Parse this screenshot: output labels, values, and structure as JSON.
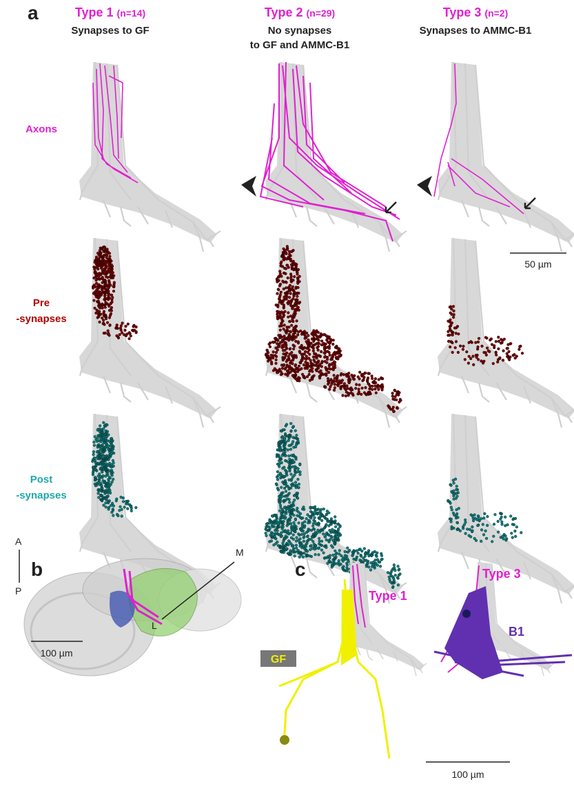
{
  "panel_a": {
    "label": "a",
    "columns": [
      {
        "title": "Type 1",
        "count": "(n=14)",
        "subtitle": [
          "Synapses to GF"
        ]
      },
      {
        "title": "Type 2",
        "count": "(n=29)",
        "subtitle": [
          "No synapses",
          "to GF and AMMC-B1"
        ]
      },
      {
        "title": "Type 3",
        "count": "(n=2)",
        "subtitle": [
          "Synapses to AMMC-B1"
        ]
      }
    ],
    "rows": [
      {
        "label": [
          "Axons"
        ]
      },
      {
        "label": [
          "Pre",
          "-synapses"
        ]
      },
      {
        "label": [
          "Post",
          "-synapses"
        ]
      }
    ],
    "scale_bar": "50 µm"
  },
  "panel_b": {
    "label": "b",
    "axes": {
      "anterior": "A",
      "posterior": "P",
      "medial": "M",
      "lateral": "L"
    },
    "scale_bar": "100 µm"
  },
  "panel_c": {
    "label": "c",
    "labels": {
      "type1": "Type 1",
      "gf": "GF",
      "type3": "Type 3",
      "b1": "B1"
    },
    "scale_bar": "100 µm"
  }
}
